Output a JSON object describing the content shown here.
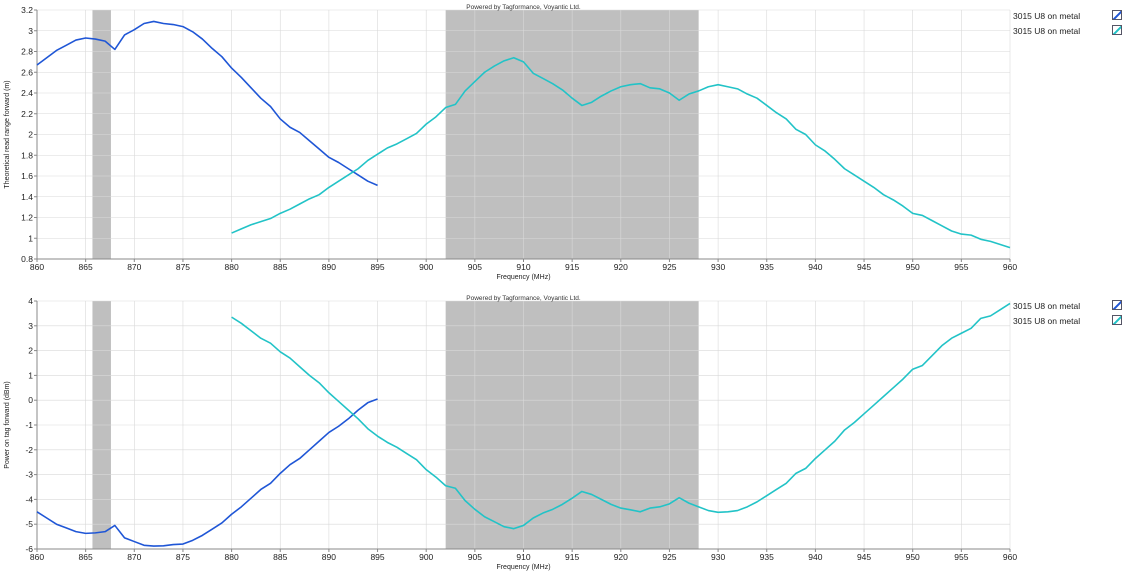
{
  "colors": {
    "series_a": "#1f56d6",
    "series_b": "#22c3c7",
    "band": "#bfbfbf",
    "grid": "#d9d9d9",
    "axis": "#888888"
  },
  "chart_data": [
    {
      "type": "line",
      "title": "Powered by Tagformance, Voyantic Ltd.",
      "xlabel": "Frequency (MHz)",
      "ylabel": "Theoretical read range forward (m)",
      "xlim": [
        860,
        960
      ],
      "ylim": [
        0.8,
        3.2
      ],
      "x_ticks": [
        860,
        865,
        870,
        875,
        880,
        885,
        890,
        895,
        900,
        905,
        910,
        915,
        920,
        925,
        930,
        935,
        940,
        945,
        950,
        955,
        960
      ],
      "y_ticks": [
        0.8,
        1,
        1.2,
        1.4,
        1.6,
        1.8,
        2,
        2.2,
        2.4,
        2.6,
        2.8,
        3,
        3.2
      ],
      "y_tick_labels": [
        "0.8",
        "1",
        "1.2",
        "1.4",
        "1.6",
        "1.8",
        "2",
        "2.2",
        "2.4",
        "2.6",
        "2.8",
        "3",
        "3.2"
      ],
      "grid": true,
      "legend_position": "right",
      "shaded_bands": [
        [
          865.7,
          867.6
        ],
        [
          902,
          928
        ]
      ],
      "series": [
        {
          "name": "3015 U8 on metal",
          "color": "#1f56d6",
          "points": [
            [
              860,
              2.67
            ],
            [
              861,
              2.74
            ],
            [
              862,
              2.81
            ],
            [
              863,
              2.86
            ],
            [
              864,
              2.91
            ],
            [
              865,
              2.93
            ],
            [
              866,
              2.92
            ],
            [
              867,
              2.9
            ],
            [
              868,
              2.82
            ],
            [
              869,
              2.96
            ],
            [
              870,
              3.01
            ],
            [
              871,
              3.07
            ],
            [
              872,
              3.09
            ],
            [
              873,
              3.07
            ],
            [
              874,
              3.06
            ],
            [
              875,
              3.04
            ],
            [
              876,
              2.99
            ],
            [
              877,
              2.92
            ],
            [
              878,
              2.83
            ],
            [
              879,
              2.75
            ],
            [
              880,
              2.64
            ],
            [
              881,
              2.55
            ],
            [
              882,
              2.45
            ],
            [
              883,
              2.35
            ],
            [
              884,
              2.27
            ],
            [
              885,
              2.15
            ],
            [
              886,
              2.07
            ],
            [
              887,
              2.02
            ],
            [
              888,
              1.94
            ],
            [
              889,
              1.86
            ],
            [
              890,
              1.78
            ],
            [
              891,
              1.73
            ],
            [
              892,
              1.67
            ],
            [
              893,
              1.61
            ],
            [
              894,
              1.55
            ],
            [
              895,
              1.51
            ]
          ]
        },
        {
          "name": "3015 U8 on metal",
          "color": "#22c3c7",
          "points": [
            [
              880,
              1.05
            ],
            [
              881,
              1.09
            ],
            [
              882,
              1.13
            ],
            [
              883,
              1.16
            ],
            [
              884,
              1.19
            ],
            [
              885,
              1.24
            ],
            [
              886,
              1.28
            ],
            [
              887,
              1.33
            ],
            [
              888,
              1.38
            ],
            [
              889,
              1.42
            ],
            [
              890,
              1.49
            ],
            [
              891,
              1.55
            ],
            [
              892,
              1.61
            ],
            [
              893,
              1.67
            ],
            [
              894,
              1.75
            ],
            [
              895,
              1.81
            ],
            [
              896,
              1.87
            ],
            [
              897,
              1.91
            ],
            [
              898,
              1.96
            ],
            [
              899,
              2.01
            ],
            [
              900,
              2.1
            ],
            [
              901,
              2.17
            ],
            [
              902,
              2.26
            ],
            [
              903,
              2.29
            ],
            [
              904,
              2.42
            ],
            [
              905,
              2.51
            ],
            [
              906,
              2.6
            ],
            [
              907,
              2.66
            ],
            [
              908,
              2.71
            ],
            [
              909,
              2.74
            ],
            [
              910,
              2.7
            ],
            [
              911,
              2.59
            ],
            [
              912,
              2.54
            ],
            [
              913,
              2.49
            ],
            [
              914,
              2.43
            ],
            [
              915,
              2.35
            ],
            [
              916,
              2.28
            ],
            [
              917,
              2.31
            ],
            [
              918,
              2.37
            ],
            [
              919,
              2.42
            ],
            [
              920,
              2.46
            ],
            [
              921,
              2.48
            ],
            [
              922,
              2.49
            ],
            [
              923,
              2.45
            ],
            [
              924,
              2.44
            ],
            [
              925,
              2.4
            ],
            [
              926,
              2.33
            ],
            [
              927,
              2.39
            ],
            [
              928,
              2.42
            ],
            [
              929,
              2.46
            ],
            [
              930,
              2.48
            ],
            [
              931,
              2.46
            ],
            [
              932,
              2.44
            ],
            [
              933,
              2.39
            ],
            [
              934,
              2.35
            ],
            [
              935,
              2.28
            ],
            [
              936,
              2.21
            ],
            [
              937,
              2.15
            ],
            [
              938,
              2.05
            ],
            [
              939,
              2.0
            ],
            [
              940,
              1.9
            ],
            [
              941,
              1.84
            ],
            [
              942,
              1.76
            ],
            [
              943,
              1.67
            ],
            [
              944,
              1.61
            ],
            [
              945,
              1.55
            ],
            [
              946,
              1.49
            ],
            [
              947,
              1.42
            ],
            [
              948,
              1.37
            ],
            [
              949,
              1.31
            ],
            [
              950,
              1.24
            ],
            [
              951,
              1.22
            ],
            [
              952,
              1.17
            ],
            [
              953,
              1.12
            ],
            [
              954,
              1.07
            ],
            [
              955,
              1.04
            ],
            [
              956,
              1.03
            ],
            [
              957,
              0.99
            ],
            [
              958,
              0.97
            ],
            [
              959,
              0.94
            ],
            [
              960,
              0.91
            ]
          ]
        }
      ]
    },
    {
      "type": "line",
      "title": "Powered by Tagformance, Voyantic Ltd.",
      "xlabel": "Frequency (MHz)",
      "ylabel": "Power on tag forward (dBm)",
      "xlim": [
        860,
        960
      ],
      "ylim": [
        -6,
        4
      ],
      "x_ticks": [
        860,
        865,
        870,
        875,
        880,
        885,
        890,
        895,
        900,
        905,
        910,
        915,
        920,
        925,
        930,
        935,
        940,
        945,
        950,
        955,
        960
      ],
      "y_ticks": [
        -6,
        -5,
        -4,
        -3,
        -2,
        -1,
        0,
        1,
        2,
        3,
        4
      ],
      "y_tick_labels": [
        "-6",
        "-5",
        "-4",
        "-3",
        "-2",
        "-1",
        "0",
        "1",
        "2",
        "3",
        "4"
      ],
      "grid": true,
      "legend_position": "right",
      "shaded_bands": [
        [
          865.7,
          867.6
        ],
        [
          902,
          928
        ]
      ],
      "series": [
        {
          "name": "3015 U8 on metal",
          "color": "#1f56d6",
          "points": [
            [
              860,
              -4.5
            ],
            [
              861,
              -4.75
            ],
            [
              862,
              -5.0
            ],
            [
              863,
              -5.15
            ],
            [
              864,
              -5.3
            ],
            [
              865,
              -5.37
            ],
            [
              866,
              -5.35
            ],
            [
              867,
              -5.3
            ],
            [
              868,
              -5.05
            ],
            [
              869,
              -5.55
            ],
            [
              870,
              -5.7
            ],
            [
              871,
              -5.85
            ],
            [
              872,
              -5.88
            ],
            [
              873,
              -5.87
            ],
            [
              874,
              -5.82
            ],
            [
              875,
              -5.8
            ],
            [
              876,
              -5.65
            ],
            [
              877,
              -5.45
            ],
            [
              878,
              -5.2
            ],
            [
              879,
              -4.95
            ],
            [
              880,
              -4.6
            ],
            [
              881,
              -4.3
            ],
            [
              882,
              -3.95
            ],
            [
              883,
              -3.6
            ],
            [
              884,
              -3.35
            ],
            [
              885,
              -2.95
            ],
            [
              886,
              -2.6
            ],
            [
              887,
              -2.35
            ],
            [
              888,
              -2.0
            ],
            [
              889,
              -1.65
            ],
            [
              890,
              -1.3
            ],
            [
              891,
              -1.05
            ],
            [
              892,
              -0.75
            ],
            [
              893,
              -0.4
            ],
            [
              894,
              -0.1
            ],
            [
              895,
              0.05
            ]
          ]
        },
        {
          "name": "3015 U8 on metal",
          "color": "#22c3c7",
          "points": [
            [
              880,
              3.35
            ],
            [
              881,
              3.1
            ],
            [
              882,
              2.8
            ],
            [
              883,
              2.5
            ],
            [
              884,
              2.3
            ],
            [
              885,
              1.95
            ],
            [
              886,
              1.7
            ],
            [
              887,
              1.35
            ],
            [
              888,
              1.0
            ],
            [
              889,
              0.7
            ],
            [
              890,
              0.3
            ],
            [
              891,
              -0.05
            ],
            [
              892,
              -0.4
            ],
            [
              893,
              -0.75
            ],
            [
              894,
              -1.15
            ],
            [
              895,
              -1.45
            ],
            [
              896,
              -1.7
            ],
            [
              897,
              -1.9
            ],
            [
              898,
              -2.15
            ],
            [
              899,
              -2.4
            ],
            [
              900,
              -2.8
            ],
            [
              901,
              -3.1
            ],
            [
              902,
              -3.45
            ],
            [
              903,
              -3.55
            ],
            [
              904,
              -4.05
            ],
            [
              905,
              -4.4
            ],
            [
              906,
              -4.7
            ],
            [
              907,
              -4.9
            ],
            [
              908,
              -5.1
            ],
            [
              909,
              -5.18
            ],
            [
              910,
              -5.05
            ],
            [
              911,
              -4.75
            ],
            [
              912,
              -4.55
            ],
            [
              913,
              -4.4
            ],
            [
              914,
              -4.2
            ],
            [
              915,
              -3.95
            ],
            [
              916,
              -3.68
            ],
            [
              917,
              -3.8
            ],
            [
              918,
              -4.0
            ],
            [
              919,
              -4.2
            ],
            [
              920,
              -4.35
            ],
            [
              921,
              -4.42
            ],
            [
              922,
              -4.5
            ],
            [
              923,
              -4.35
            ],
            [
              924,
              -4.3
            ],
            [
              925,
              -4.18
            ],
            [
              926,
              -3.93
            ],
            [
              927,
              -4.15
            ],
            [
              928,
              -4.3
            ],
            [
              929,
              -4.45
            ],
            [
              930,
              -4.52
            ],
            [
              931,
              -4.5
            ],
            [
              932,
              -4.45
            ],
            [
              933,
              -4.3
            ],
            [
              934,
              -4.1
            ],
            [
              935,
              -3.85
            ],
            [
              936,
              -3.6
            ],
            [
              937,
              -3.35
            ],
            [
              938,
              -2.95
            ],
            [
              939,
              -2.75
            ],
            [
              940,
              -2.35
            ],
            [
              941,
              -2.0
            ],
            [
              942,
              -1.65
            ],
            [
              943,
              -1.2
            ],
            [
              944,
              -0.9
            ],
            [
              945,
              -0.55
            ],
            [
              946,
              -0.2
            ],
            [
              947,
              0.15
            ],
            [
              948,
              0.5
            ],
            [
              949,
              0.85
            ],
            [
              950,
              1.25
            ],
            [
              951,
              1.4
            ],
            [
              952,
              1.8
            ],
            [
              953,
              2.2
            ],
            [
              954,
              2.5
            ],
            [
              955,
              2.7
            ],
            [
              956,
              2.9
            ],
            [
              957,
              3.3
            ],
            [
              958,
              3.4
            ],
            [
              959,
              3.65
            ],
            [
              960,
              3.9
            ]
          ]
        }
      ]
    }
  ]
}
